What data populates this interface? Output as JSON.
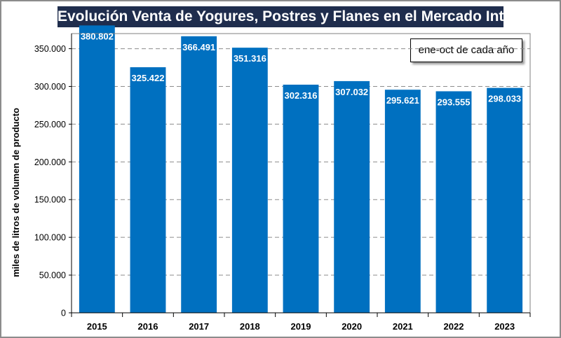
{
  "chart_data": {
    "type": "bar",
    "title": "Evolución Venta de Yogures, Postres y Flanes en el Mercado Interno",
    "legend_note": "ene-oct de cada año",
    "ylabel": "miles de litros de volumen de producto",
    "xlabel": "",
    "ylim": [
      0,
      370000
    ],
    "ytick_values": [
      0,
      50000,
      100000,
      150000,
      200000,
      250000,
      300000,
      350000
    ],
    "ytick_labels": [
      "0",
      "50.000",
      "100.000",
      "150.000",
      "200.000",
      "250.000",
      "300.000",
      "350.000"
    ],
    "categories": [
      "2015",
      "2016",
      "2017",
      "2018",
      "2019",
      "2020",
      "2021",
      "2022",
      "2023"
    ],
    "values": [
      380802,
      325422,
      366491,
      351316,
      302316,
      307032,
      295621,
      293555,
      298033
    ],
    "value_labels": [
      "380.802",
      "325.422",
      "366.491",
      "351.316",
      "302.316",
      "307.032",
      "295.621",
      "293.555",
      "298.033"
    ],
    "bar_color": "#0070c0",
    "grid": true
  }
}
